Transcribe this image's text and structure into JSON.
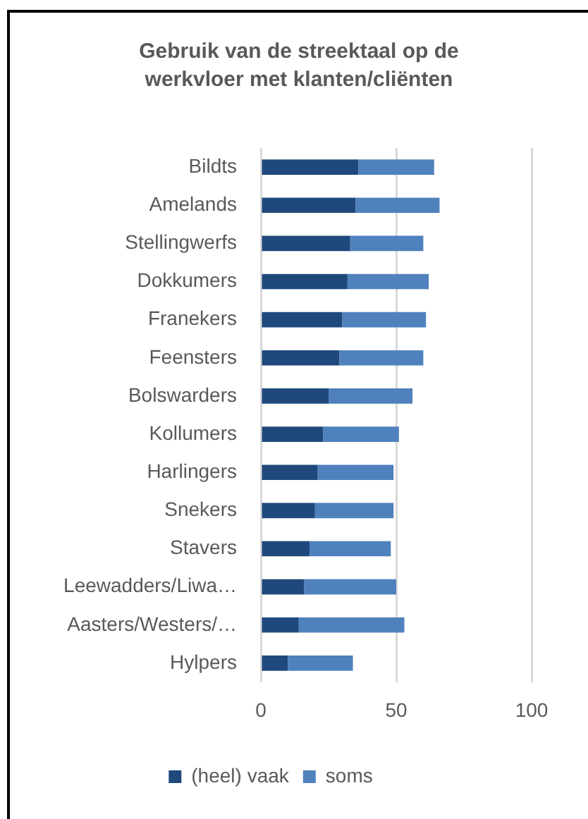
{
  "chart_data": {
    "type": "bar",
    "title": "Gebruik van de streektaal op de werkvloer met klanten/cliënten",
    "categories": [
      "Bildts",
      "Amelands",
      "Stellingwerfs",
      "Dokkumers",
      "Franekers",
      "Feensters",
      "Bolswarders",
      "Kollumers",
      "Harlingers",
      "Snekers",
      "Stavers",
      "Leewadders/Liwa…",
      "Aasters/Westers/…",
      "Hylpers"
    ],
    "series": [
      {
        "name": "(heel) vaak",
        "color": "#1f497d",
        "values": [
          36,
          35,
          33,
          32,
          30,
          29,
          25,
          23,
          21,
          20,
          18,
          16,
          14,
          10
        ]
      },
      {
        "name": "soms",
        "color": "#4f81bd",
        "values": [
          28,
          31,
          27,
          30,
          31,
          31,
          31,
          28,
          28,
          29,
          30,
          34,
          39,
          24
        ]
      }
    ],
    "stacked": true,
    "orientation": "horizontal",
    "xlim": [
      0,
      100
    ],
    "xticks": [
      0,
      50,
      100
    ],
    "grid": "x",
    "legend": "bottom"
  }
}
